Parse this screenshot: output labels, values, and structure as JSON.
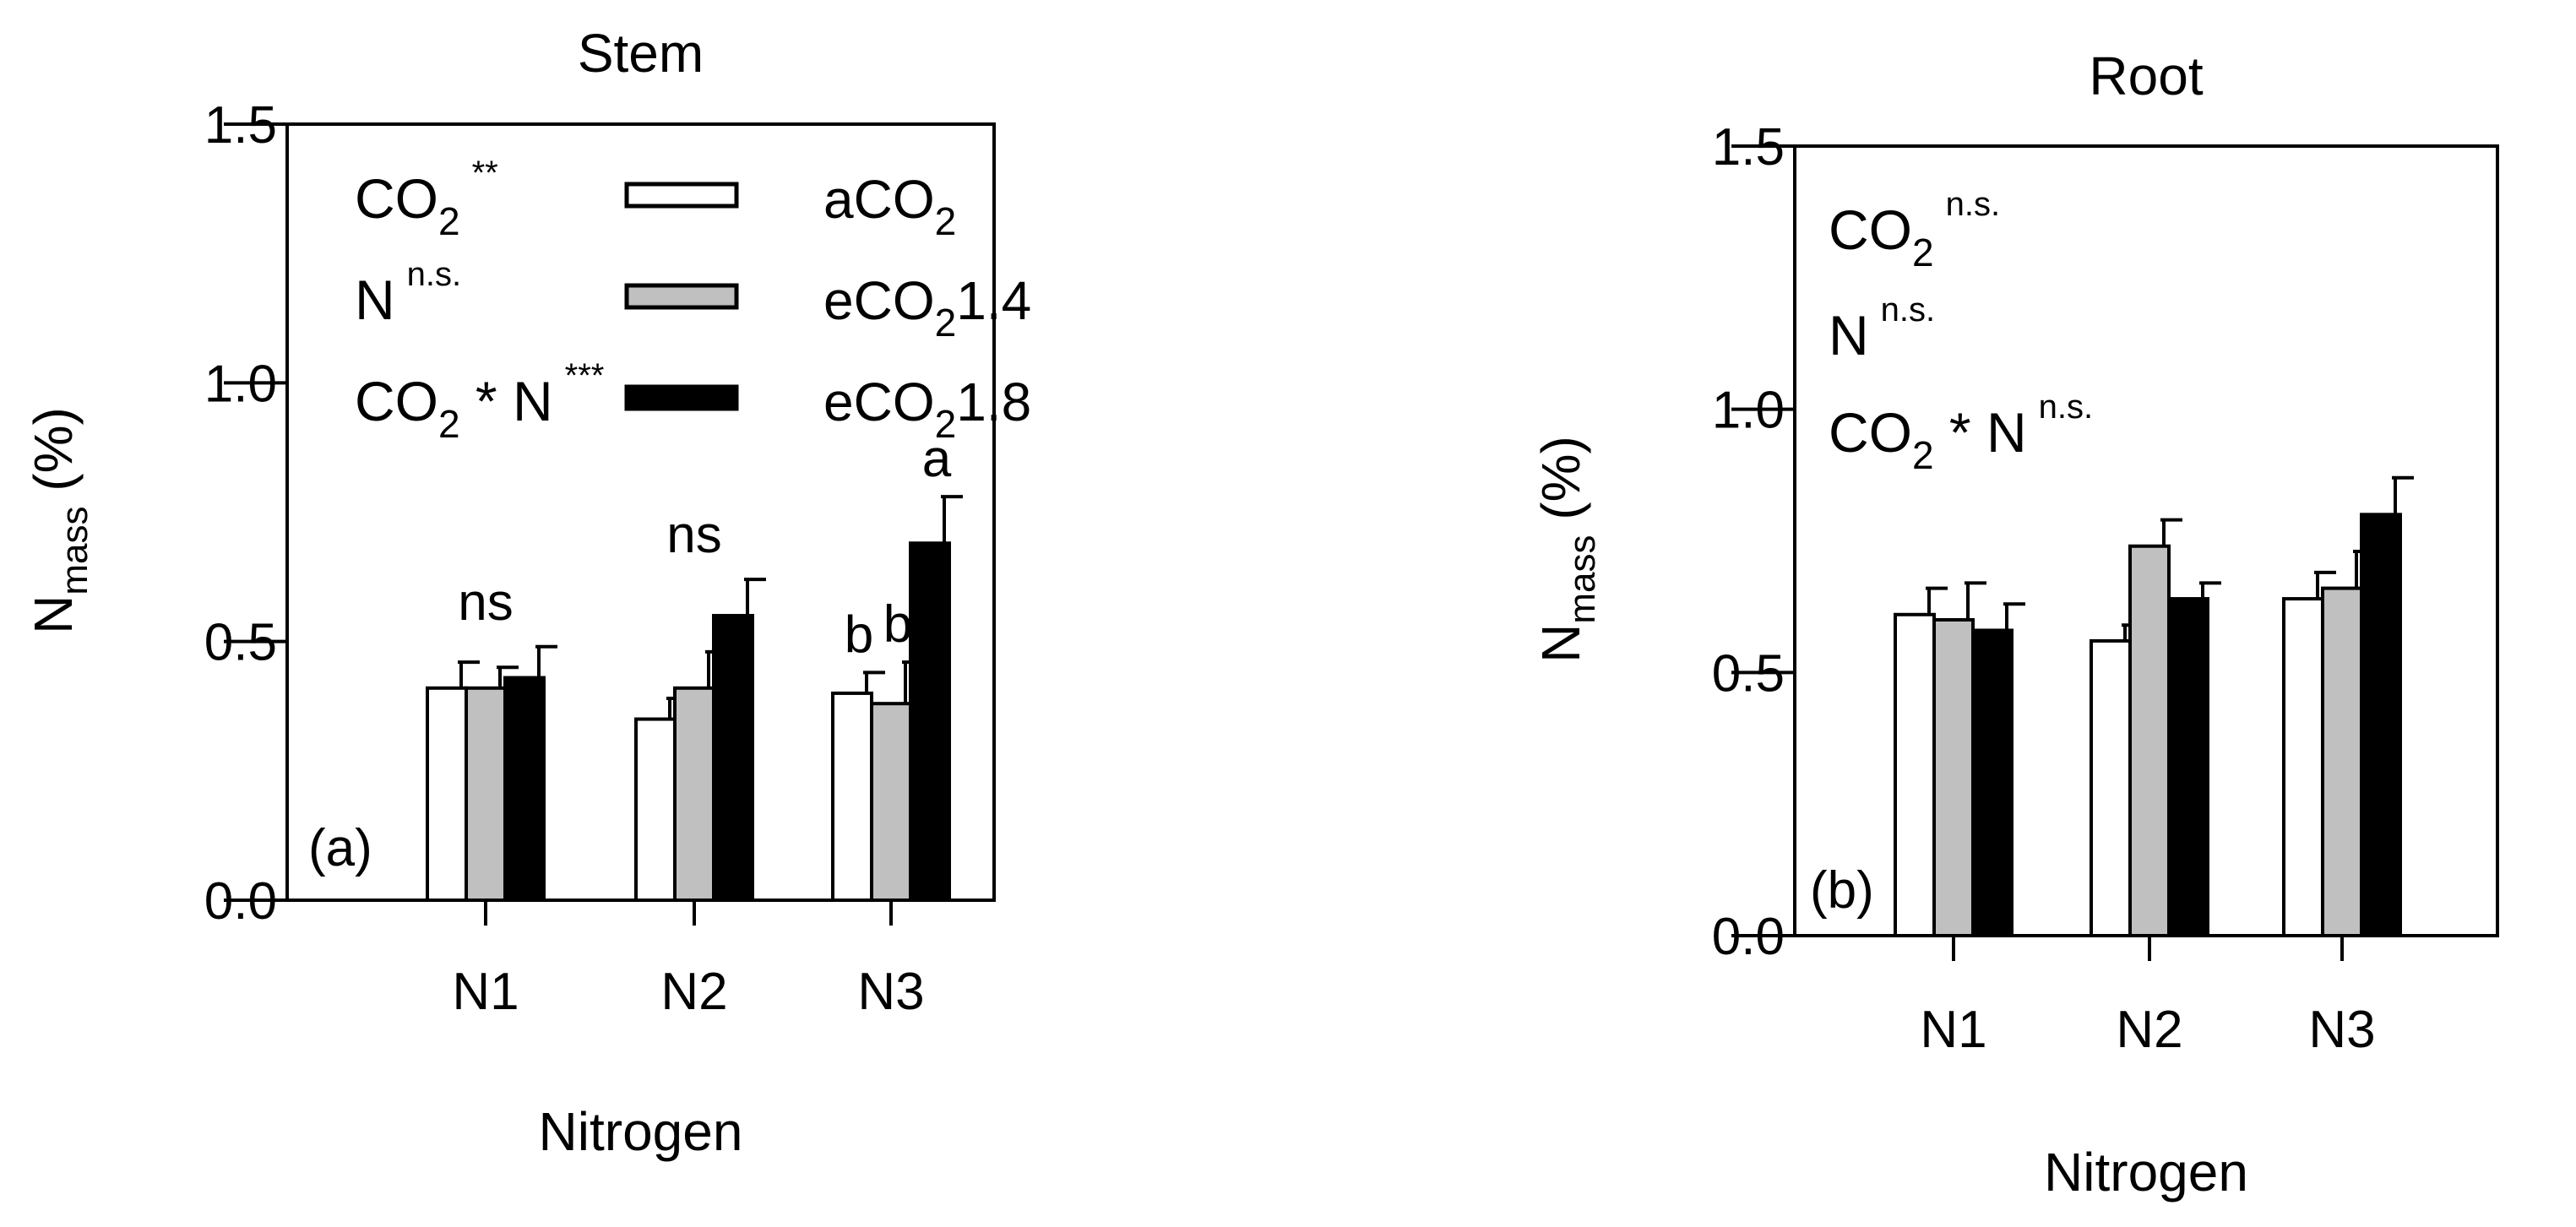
{
  "chart_data": [
    {
      "type": "bar",
      "panel_id": "stem",
      "title": "Stem",
      "panel_tag": "(a)",
      "xlabel": "Nitrogen",
      "ylabel": "N",
      "ylabel_sub": "mass",
      "ylabel_unit": " (%)",
      "ylim": [
        0,
        1.5
      ],
      "yticks": [
        "0.0",
        "0.5",
        "1.0",
        "1.5"
      ],
      "categories": [
        "N1",
        "N2",
        "N3"
      ],
      "series": [
        {
          "name": "aCO2",
          "label_main": "aCO",
          "label_sub": "2",
          "label_tail": "",
          "color": "#ffffff",
          "values": [
            0.41,
            0.35,
            0.4
          ],
          "errors": [
            0.05,
            0.04,
            0.04
          ]
        },
        {
          "name": "eCO21.4",
          "label_main": "eCO",
          "label_sub": "2",
          "label_tail": "1.4",
          "color": "#c0c0c0",
          "values": [
            0.41,
            0.41,
            0.38
          ],
          "errors": [
            0.04,
            0.07,
            0.08
          ]
        },
        {
          "name": "eCO21.8",
          "label_main": "eCO",
          "label_sub": "2",
          "label_tail": "1.8",
          "color": "#000000",
          "values": [
            0.43,
            0.55,
            0.69
          ],
          "errors": [
            0.06,
            0.07,
            0.09
          ]
        }
      ],
      "group_labels": [
        "ns",
        "ns",
        ""
      ],
      "bar_letters": [
        [
          "",
          "",
          ""
        ],
        [
          "",
          "",
          ""
        ],
        [
          "b",
          "b",
          "a"
        ]
      ],
      "stats": [
        {
          "main": "CO",
          "sub": "2",
          "tail": "",
          "sig": "**"
        },
        {
          "main": "N",
          "sub": "",
          "tail": "",
          "sig": "n.s."
        },
        {
          "main": "CO",
          "sub": "2",
          "tail": " * N",
          "sig": "***"
        }
      ],
      "legend_position": "top"
    },
    {
      "type": "bar",
      "panel_id": "root",
      "title": "Root",
      "panel_tag": "(b)",
      "xlabel": "Nitrogen",
      "ylabel": "N",
      "ylabel_sub": "mass",
      "ylabel_unit": " (%)",
      "ylim": [
        0,
        1.5
      ],
      "yticks": [
        "0.0",
        "0.5",
        "1.0",
        "1.5"
      ],
      "categories": [
        "N1",
        "N2",
        "N3"
      ],
      "series": [
        {
          "name": "aCO2",
          "color": "#ffffff",
          "values": [
            0.61,
            0.56,
            0.64
          ],
          "errors": [
            0.05,
            0.03,
            0.05
          ]
        },
        {
          "name": "eCO21.4",
          "color": "#c0c0c0",
          "values": [
            0.6,
            0.74,
            0.66
          ],
          "errors": [
            0.07,
            0.05,
            0.07
          ]
        },
        {
          "name": "eCO21.8",
          "color": "#000000",
          "values": [
            0.58,
            0.64,
            0.8
          ],
          "errors": [
            0.05,
            0.03,
            0.07
          ]
        }
      ],
      "group_labels": [
        "",
        "",
        ""
      ],
      "bar_letters": [
        [
          "",
          "",
          ""
        ],
        [
          "",
          "",
          ""
        ],
        [
          "",
          "",
          ""
        ]
      ],
      "stats": [
        {
          "main": "CO",
          "sub": "2",
          "tail": "",
          "sig": "n.s."
        },
        {
          "main": "N",
          "sub": "",
          "tail": "",
          "sig": "n.s."
        },
        {
          "main": "CO",
          "sub": "2",
          "tail": " * N",
          "sig": "n.s."
        }
      ]
    }
  ]
}
